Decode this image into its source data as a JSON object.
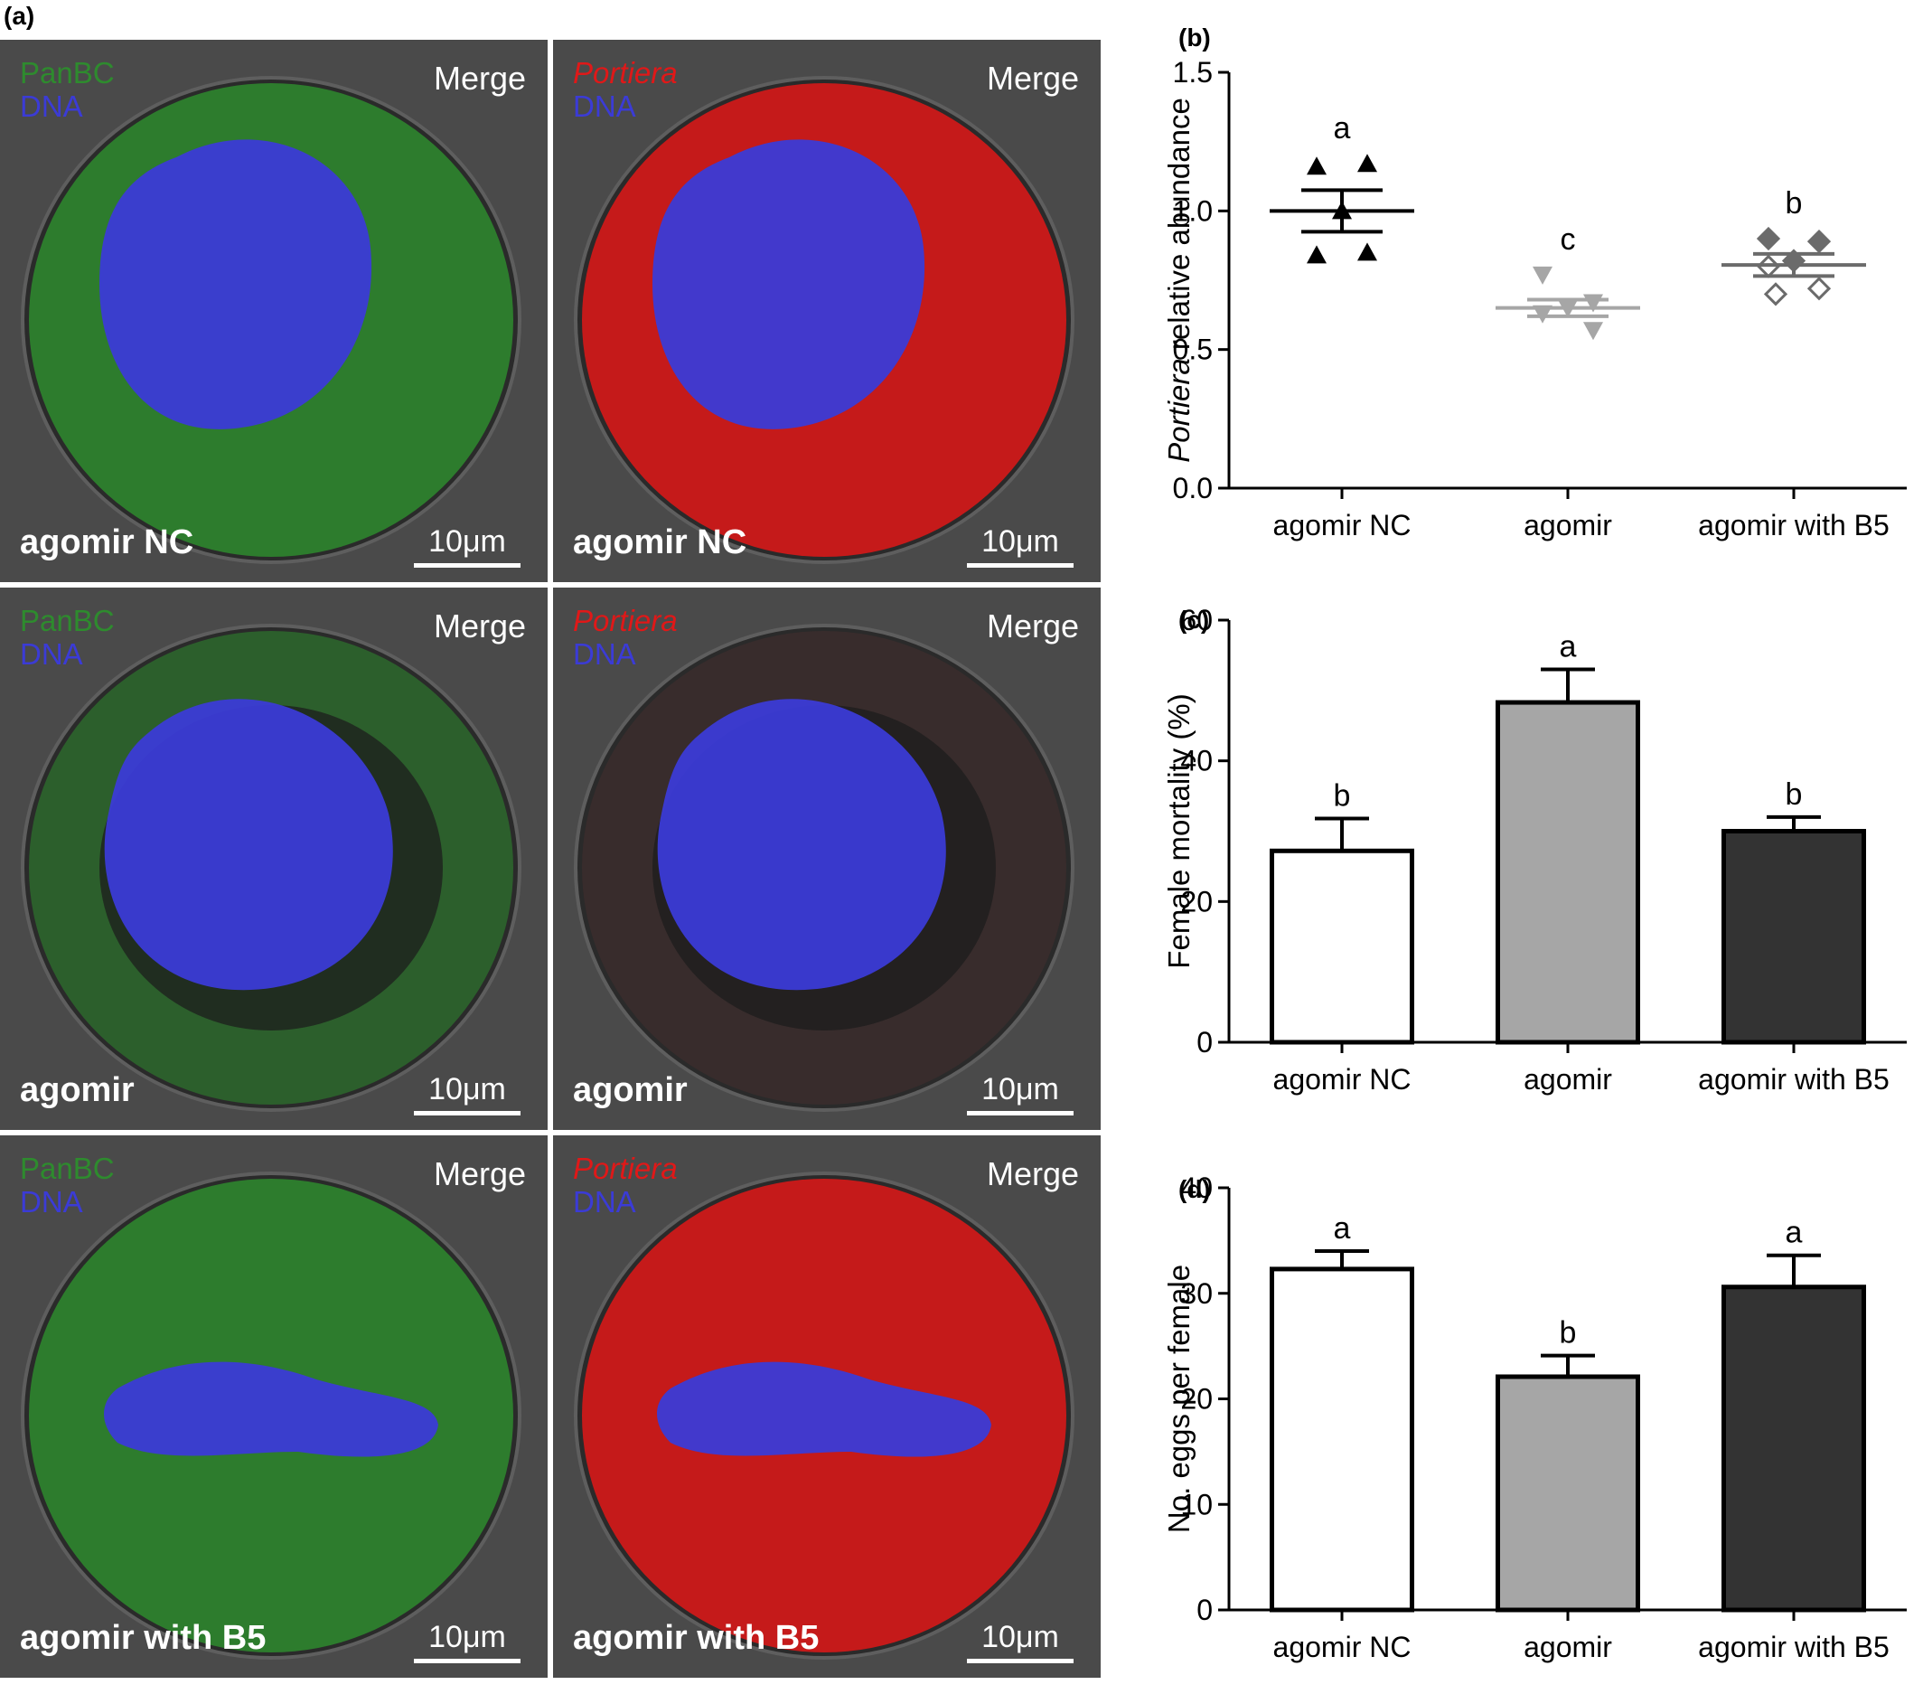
{
  "panel_labels": {
    "a": "(a)",
    "b": "(b)",
    "c": "(c)",
    "d": "(d)"
  },
  "micrographs": {
    "merge_label": "Merge",
    "scale_label": "10μm",
    "rows": [
      {
        "condition": "agomir NC",
        "left": {
          "channel1": "PanBC",
          "channel2": "DNA"
        },
        "right": {
          "channel1": "Portiera",
          "channel2": "DNA"
        }
      },
      {
        "condition": "agomir",
        "left": {
          "channel1": "PanBC",
          "channel2": "DNA"
        },
        "right": {
          "channel1": "Portiera",
          "channel2": "DNA"
        }
      },
      {
        "condition": "agomir with B5",
        "left": {
          "channel1": "PanBC",
          "channel2": "DNA"
        },
        "right": {
          "channel1": "Portiera",
          "channel2": "DNA"
        }
      }
    ],
    "colors": {
      "panbc": "#2e8b2e",
      "dna": "#3b3bd6",
      "portiera": "#e01818"
    }
  },
  "chart_data": [
    {
      "id": "b",
      "type": "scatter",
      "ylabel_italic": "Portiera",
      "ylabel_rest": " relative abundance",
      "categories": [
        "agomir NC",
        "agomir",
        "agomir with B5"
      ],
      "ylim": [
        0.0,
        1.5
      ],
      "yticks": [
        "0.0",
        "0.5",
        "1.0",
        "1.5"
      ],
      "series": [
        {
          "category": "agomir NC",
          "marker": "triangle-up",
          "color": "#000000",
          "points": [
            1.16,
            1.17,
            1.0,
            0.84,
            0.85
          ],
          "mean": 1.0,
          "sem": 0.075,
          "letter": "a"
        },
        {
          "category": "agomir",
          "marker": "triangle-down",
          "color": "#a6a6a6",
          "points": [
            0.77,
            0.67,
            0.65,
            0.63,
            0.57
          ],
          "mean": 0.65,
          "sem": 0.03,
          "letter": "c"
        },
        {
          "category": "agomir with B5",
          "marker": "diamond",
          "color": "#6b6b6b",
          "points": [
            0.9,
            0.89,
            0.82,
            0.8,
            0.72,
            0.7
          ],
          "mean": 0.805,
          "sem": 0.04,
          "letter": "b"
        }
      ]
    },
    {
      "id": "c",
      "type": "bar",
      "ylabel": "Female mortality (%)",
      "categories": [
        "agomir NC",
        "agomir",
        "agomir with B5"
      ],
      "values": [
        27.2,
        48.3,
        30.0
      ],
      "errors": [
        4.6,
        4.7,
        2.0
      ],
      "letters": [
        "b",
        "a",
        "b"
      ],
      "colors": [
        "#ffffff",
        "#a6a6a6",
        "#333333"
      ],
      "ylim": [
        0,
        60
      ],
      "yticks": [
        "0",
        "20",
        "40",
        "60"
      ]
    },
    {
      "id": "d",
      "type": "bar",
      "ylabel": "No. eggs per female",
      "categories": [
        "agomir NC",
        "agomir",
        "agomir with B5"
      ],
      "values": [
        32.3,
        22.1,
        30.6
      ],
      "errors": [
        1.7,
        2.0,
        3.0
      ],
      "letters": [
        "a",
        "b",
        "a"
      ],
      "colors": [
        "#ffffff",
        "#a6a6a6",
        "#333333"
      ],
      "ylim": [
        0,
        40
      ],
      "yticks": [
        "0",
        "10",
        "20",
        "30",
        "40"
      ]
    }
  ]
}
